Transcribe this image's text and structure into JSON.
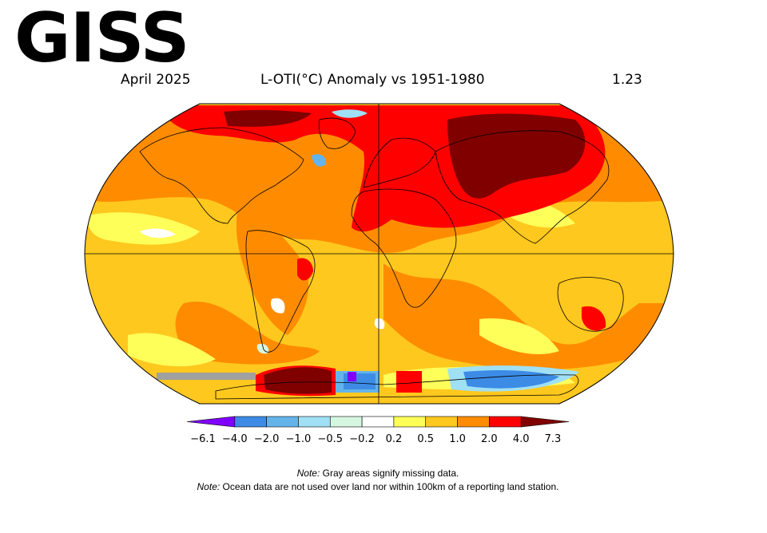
{
  "logo": "GISS",
  "header": {
    "date": "April 2025",
    "title": "L-OTI(°C) Anomaly vs 1951-1980",
    "global_mean": "1.23"
  },
  "colorbar": {
    "labels": [
      "−6.1",
      "−4.0",
      "−2.0",
      "−1.0",
      "−0.5",
      "−0.2",
      "0.2",
      "0.5",
      "1.0",
      "2.0",
      "4.0",
      "7.3"
    ],
    "colors": [
      "#8000ff",
      "#3c8ce6",
      "#64b4ea",
      "#a0e0f4",
      "#d6f6e0",
      "#ffffff",
      "#ffff5a",
      "#ffc81e",
      "#ff8c00",
      "#ff0000",
      "#800000"
    ]
  },
  "notes": [
    {
      "prefix": "Note:",
      "text": " Gray areas signify missing data."
    },
    {
      "prefix": "Note:",
      "text": " Ocean data are not used over land nor within 100km of a reporting land station."
    }
  ],
  "map_colors": {
    "gray_missing": "#a0a0a0",
    "coastline": "#000000"
  }
}
